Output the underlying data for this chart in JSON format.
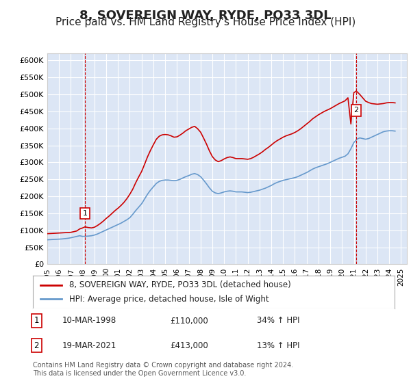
{
  "title": "8, SOVEREIGN WAY, RYDE, PO33 3DL",
  "subtitle": "Price paid vs. HM Land Registry's House Price Index (HPI)",
  "title_fontsize": 13,
  "subtitle_fontsize": 11,
  "ylim": [
    0,
    620000
  ],
  "yticks": [
    0,
    50000,
    100000,
    150000,
    200000,
    250000,
    300000,
    350000,
    400000,
    450000,
    500000,
    550000,
    600000
  ],
  "ytick_labels": [
    "£0",
    "£50K",
    "£100K",
    "£150K",
    "£200K",
    "£250K",
    "£300K",
    "£350K",
    "£400K",
    "£450K",
    "£500K",
    "£550K",
    "£600K"
  ],
  "xlim_start": 1995.0,
  "xlim_end": 2025.5,
  "plot_bg_color": "#dce6f5",
  "fig_bg_color": "#ffffff",
  "grid_color": "#ffffff",
  "red_line_color": "#cc0000",
  "blue_line_color": "#6699cc",
  "sale1_year": 1998.19,
  "sale1_price": 110000,
  "sale1_label": "1",
  "sale2_year": 2021.21,
  "sale2_price": 413000,
  "sale2_label": "2",
  "legend_label_red": "8, SOVEREIGN WAY, RYDE, PO33 3DL (detached house)",
  "legend_label_blue": "HPI: Average price, detached house, Isle of Wight",
  "table_rows": [
    [
      "1",
      "10-MAR-1998",
      "£110,000",
      "34% ↑ HPI"
    ],
    [
      "2",
      "19-MAR-2021",
      "£413,000",
      "13% ↑ HPI"
    ]
  ],
  "footer": "Contains HM Land Registry data © Crown copyright and database right 2024.\nThis data is licensed under the Open Government Licence v3.0.",
  "hpi_years": [
    1995.0,
    1995.25,
    1995.5,
    1995.75,
    1996.0,
    1996.25,
    1996.5,
    1996.75,
    1997.0,
    1997.25,
    1997.5,
    1997.75,
    1998.0,
    1998.25,
    1998.5,
    1998.75,
    1999.0,
    1999.25,
    1999.5,
    1999.75,
    2000.0,
    2000.25,
    2000.5,
    2000.75,
    2001.0,
    2001.25,
    2001.5,
    2001.75,
    2002.0,
    2002.25,
    2002.5,
    2002.75,
    2003.0,
    2003.25,
    2003.5,
    2003.75,
    2004.0,
    2004.25,
    2004.5,
    2004.75,
    2005.0,
    2005.25,
    2005.5,
    2005.75,
    2006.0,
    2006.25,
    2006.5,
    2006.75,
    2007.0,
    2007.25,
    2007.5,
    2007.75,
    2008.0,
    2008.25,
    2008.5,
    2008.75,
    2009.0,
    2009.25,
    2009.5,
    2009.75,
    2010.0,
    2010.25,
    2010.5,
    2010.75,
    2011.0,
    2011.25,
    2011.5,
    2011.75,
    2012.0,
    2012.25,
    2012.5,
    2012.75,
    2013.0,
    2013.25,
    2013.5,
    2013.75,
    2014.0,
    2014.25,
    2014.5,
    2014.75,
    2015.0,
    2015.25,
    2015.5,
    2015.75,
    2016.0,
    2016.25,
    2016.5,
    2016.75,
    2017.0,
    2017.25,
    2017.5,
    2017.75,
    2018.0,
    2018.25,
    2018.5,
    2018.75,
    2019.0,
    2019.25,
    2019.5,
    2019.75,
    2020.0,
    2020.25,
    2020.5,
    2020.75,
    2021.0,
    2021.25,
    2021.5,
    2021.75,
    2022.0,
    2022.25,
    2022.5,
    2022.75,
    2023.0,
    2023.25,
    2023.5,
    2023.75,
    2024.0,
    2024.25,
    2024.5
  ],
  "hpi_values": [
    72000,
    72500,
    73000,
    73500,
    74000,
    74500,
    75500,
    76500,
    78000,
    80000,
    82000,
    84000,
    82000,
    82500,
    83000,
    84000,
    86000,
    89000,
    93000,
    97000,
    101000,
    105000,
    109000,
    113000,
    117000,
    121000,
    126000,
    131000,
    137000,
    147000,
    158000,
    168000,
    178000,
    192000,
    206000,
    218000,
    228000,
    238000,
    244000,
    247000,
    248000,
    248000,
    247000,
    246000,
    247000,
    250000,
    254000,
    258000,
    261000,
    265000,
    267000,
    264000,
    258000,
    248000,
    237000,
    225000,
    215000,
    210000,
    208000,
    210000,
    213000,
    215000,
    216000,
    215000,
    213000,
    213000,
    213000,
    212000,
    211000,
    212000,
    214000,
    216000,
    218000,
    221000,
    224000,
    228000,
    232000,
    237000,
    241000,
    244000,
    247000,
    249000,
    251000,
    253000,
    255000,
    258000,
    262000,
    266000,
    270000,
    275000,
    280000,
    284000,
    287000,
    290000,
    293000,
    296000,
    300000,
    304000,
    308000,
    312000,
    315000,
    318000,
    325000,
    340000,
    358000,
    368000,
    372000,
    370000,
    368000,
    370000,
    374000,
    378000,
    382000,
    386000,
    390000,
    392000,
    393000,
    393000,
    392000
  ],
  "red_years": [
    1995.0,
    1995.25,
    1995.5,
    1995.75,
    1996.0,
    1996.25,
    1996.5,
    1996.75,
    1997.0,
    1997.25,
    1997.5,
    1997.75,
    1998.0,
    1998.19,
    1998.5,
    1998.75,
    1999.0,
    1999.25,
    1999.5,
    1999.75,
    2000.0,
    2000.25,
    2000.5,
    2000.75,
    2001.0,
    2001.25,
    2001.5,
    2001.75,
    2002.0,
    2002.25,
    2002.5,
    2002.75,
    2003.0,
    2003.25,
    2003.5,
    2003.75,
    2004.0,
    2004.25,
    2004.5,
    2004.75,
    2005.0,
    2005.25,
    2005.5,
    2005.75,
    2006.0,
    2006.25,
    2006.5,
    2006.75,
    2007.0,
    2007.25,
    2007.5,
    2007.75,
    2008.0,
    2008.25,
    2008.5,
    2008.75,
    2009.0,
    2009.25,
    2009.5,
    2009.75,
    2010.0,
    2010.25,
    2010.5,
    2010.75,
    2011.0,
    2011.25,
    2011.5,
    2011.75,
    2012.0,
    2012.25,
    2012.5,
    2012.75,
    2013.0,
    2013.25,
    2013.5,
    2013.75,
    2014.0,
    2014.25,
    2014.5,
    2014.75,
    2015.0,
    2015.25,
    2015.5,
    2015.75,
    2016.0,
    2016.25,
    2016.5,
    2016.75,
    2017.0,
    2017.25,
    2017.5,
    2017.75,
    2018.0,
    2018.25,
    2018.5,
    2018.75,
    2019.0,
    2019.25,
    2019.5,
    2019.75,
    2020.0,
    2020.25,
    2020.5,
    2020.75,
    2021.0,
    2021.21,
    2021.5,
    2021.75,
    2022.0,
    2022.25,
    2022.5,
    2022.75,
    2023.0,
    2023.25,
    2023.5,
    2023.75,
    2024.0,
    2024.25,
    2024.5
  ],
  "red_values": [
    90000,
    90500,
    91000,
    91500,
    92000,
    92500,
    93000,
    93500,
    94000,
    96000,
    98000,
    104000,
    107000,
    110000,
    108000,
    107000,
    109000,
    114000,
    120000,
    127000,
    135000,
    142000,
    150000,
    158000,
    165000,
    173000,
    182000,
    193000,
    206000,
    221000,
    240000,
    257000,
    273000,
    294000,
    316000,
    335000,
    352000,
    368000,
    377000,
    381000,
    382000,
    381000,
    378000,
    374000,
    375000,
    380000,
    386000,
    393000,
    398000,
    403000,
    406000,
    399000,
    389000,
    372000,
    354000,
    334000,
    317000,
    307000,
    302000,
    305000,
    310000,
    314000,
    316000,
    314000,
    311000,
    311000,
    311000,
    310000,
    309000,
    311000,
    315000,
    320000,
    325000,
    331000,
    338000,
    344000,
    351000,
    358000,
    364000,
    369000,
    374000,
    378000,
    381000,
    384000,
    388000,
    393000,
    399000,
    406000,
    413000,
    420000,
    428000,
    434000,
    440000,
    445000,
    450000,
    454000,
    458000,
    463000,
    468000,
    473000,
    477000,
    481000,
    490000,
    413000,
    505000,
    510000,
    500000,
    490000,
    480000,
    476000,
    473000,
    472000,
    471000,
    472000,
    473000,
    475000,
    476000,
    476000,
    475000
  ]
}
